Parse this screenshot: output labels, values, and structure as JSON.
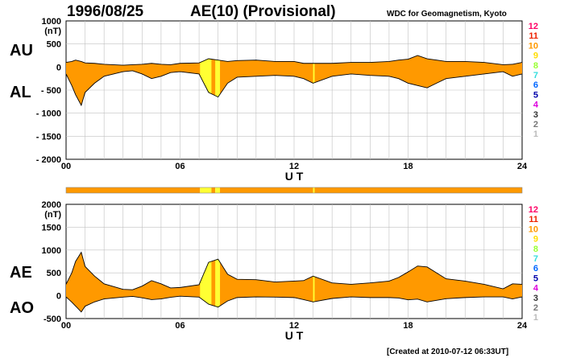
{
  "header": {
    "date": "1996/08/25",
    "title": "AE(10) (Provisional)",
    "source": "WDC for Geomagnetism, Kyoto"
  },
  "footer": {
    "created": "[Created at 2010-07-12 06:33UT]"
  },
  "colors": {
    "fill_main": "#ff9900",
    "fill_low": "#ffff33",
    "line": "#000000",
    "grid": "#c0c0c0"
  },
  "legend": {
    "stations": [
      {
        "label": "12",
        "color": "#ff0066"
      },
      {
        "label": "11",
        "color": "#ee2200"
      },
      {
        "label": "10",
        "color": "#ff9900"
      },
      {
        "label": "9",
        "color": "#ffdd00"
      },
      {
        "label": "8",
        "color": "#99ff33"
      },
      {
        "label": "7",
        "color": "#33dddd"
      },
      {
        "label": "6",
        "color": "#0066ff"
      },
      {
        "label": "5",
        "color": "#0000aa"
      },
      {
        "label": "4",
        "color": "#dd00dd"
      },
      {
        "label": "3",
        "color": "#333333"
      },
      {
        "label": "2",
        "color": "#777777"
      },
      {
        "label": "1",
        "color": "#bbbbbb"
      }
    ]
  },
  "station_bar": [
    {
      "x0": 0,
      "x1": 7.05,
      "stations": 10
    },
    {
      "x0": 7.05,
      "x1": 7.65,
      "stations": 9
    },
    {
      "x0": 7.65,
      "x1": 7.85,
      "stations": 10
    },
    {
      "x0": 7.85,
      "x1": 8.1,
      "stations": 9
    },
    {
      "x0": 8.1,
      "x1": 13.0,
      "stations": 10
    },
    {
      "x0": 13.0,
      "x1": 13.08,
      "stations": 9
    },
    {
      "x0": 13.08,
      "x1": 24,
      "stations": 10
    }
  ],
  "chart_data": [
    {
      "type": "area",
      "panel": "AU/AL",
      "series_labels": [
        "AU",
        "AL"
      ],
      "ylabel": "(nT)",
      "xlabel": "U T",
      "xlim": [
        0,
        24
      ],
      "ylim": [
        -2000,
        1000
      ],
      "xticks": [
        "00",
        "06",
        "12",
        "18",
        "24"
      ],
      "yticks": [
        "1000",
        "500",
        "0",
        "- 500",
        "- 1000",
        "- 1500",
        "- 2000"
      ],
      "x": [
        0,
        0.3,
        0.5,
        0.8,
        1.0,
        1.5,
        2.0,
        3.0,
        3.5,
        4.0,
        4.5,
        5.0,
        5.5,
        6.0,
        7.0,
        7.5,
        8.0,
        8.5,
        9.0,
        10.0,
        11.0,
        12.0,
        12.5,
        13.0,
        14.0,
        15.0,
        16.0,
        17.0,
        17.5,
        18.0,
        18.5,
        19.0,
        19.5,
        20.0,
        21.0,
        22.0,
        23.0,
        23.5,
        24.0
      ],
      "AU": [
        100,
        120,
        150,
        120,
        90,
        80,
        60,
        40,
        50,
        60,
        80,
        60,
        50,
        80,
        90,
        180,
        150,
        120,
        140,
        150,
        120,
        120,
        80,
        80,
        80,
        100,
        100,
        120,
        150,
        170,
        250,
        180,
        150,
        120,
        120,
        100,
        50,
        60,
        100
      ],
      "AL": [
        -150,
        -400,
        -600,
        -830,
        -550,
        -350,
        -200,
        -100,
        -80,
        -150,
        -250,
        -200,
        -120,
        -100,
        -150,
        -550,
        -650,
        -350,
        -220,
        -200,
        -180,
        -200,
        -250,
        -350,
        -200,
        -150,
        -180,
        -200,
        -250,
        -350,
        -400,
        -450,
        -350,
        -250,
        -200,
        -150,
        -100,
        -200,
        -150
      ]
    },
    {
      "type": "area",
      "panel": "AE/AO",
      "series_labels": [
        "AE",
        "AO"
      ],
      "ylabel": "(nT)",
      "xlabel": "U T",
      "xlim": [
        0,
        24
      ],
      "ylim": [
        -500,
        2000
      ],
      "xticks": [
        "00",
        "06",
        "12",
        "18",
        "24"
      ],
      "yticks": [
        "2000",
        "1500",
        "1000",
        "500",
        "0",
        "-500"
      ],
      "x": [
        0,
        0.3,
        0.5,
        0.8,
        1.0,
        1.5,
        2.0,
        3.0,
        3.5,
        4.0,
        4.5,
        5.0,
        5.5,
        6.0,
        7.0,
        7.5,
        8.0,
        8.5,
        9.0,
        10.0,
        11.0,
        12.0,
        12.5,
        13.0,
        14.0,
        15.0,
        16.0,
        17.0,
        17.5,
        18.0,
        18.5,
        19.0,
        19.5,
        20.0,
        21.0,
        22.0,
        23.0,
        23.5,
        24.0
      ],
      "AE": [
        250,
        500,
        750,
        950,
        640,
        430,
        260,
        140,
        130,
        210,
        330,
        260,
        170,
        180,
        240,
        730,
        800,
        470,
        360,
        350,
        300,
        320,
        330,
        430,
        280,
        250,
        280,
        320,
        400,
        520,
        650,
        630,
        500,
        370,
        320,
        250,
        150,
        260,
        250
      ],
      "AO": [
        -25,
        -140,
        -225,
        -355,
        -230,
        -135,
        -70,
        -30,
        -15,
        -45,
        -85,
        -70,
        -35,
        -10,
        -30,
        -185,
        -250,
        -115,
        -40,
        -25,
        -30,
        -40,
        -85,
        -135,
        -60,
        -25,
        -40,
        -40,
        -50,
        -90,
        -75,
        -135,
        -100,
        -65,
        -40,
        -25,
        -25,
        -70,
        -25
      ]
    }
  ]
}
